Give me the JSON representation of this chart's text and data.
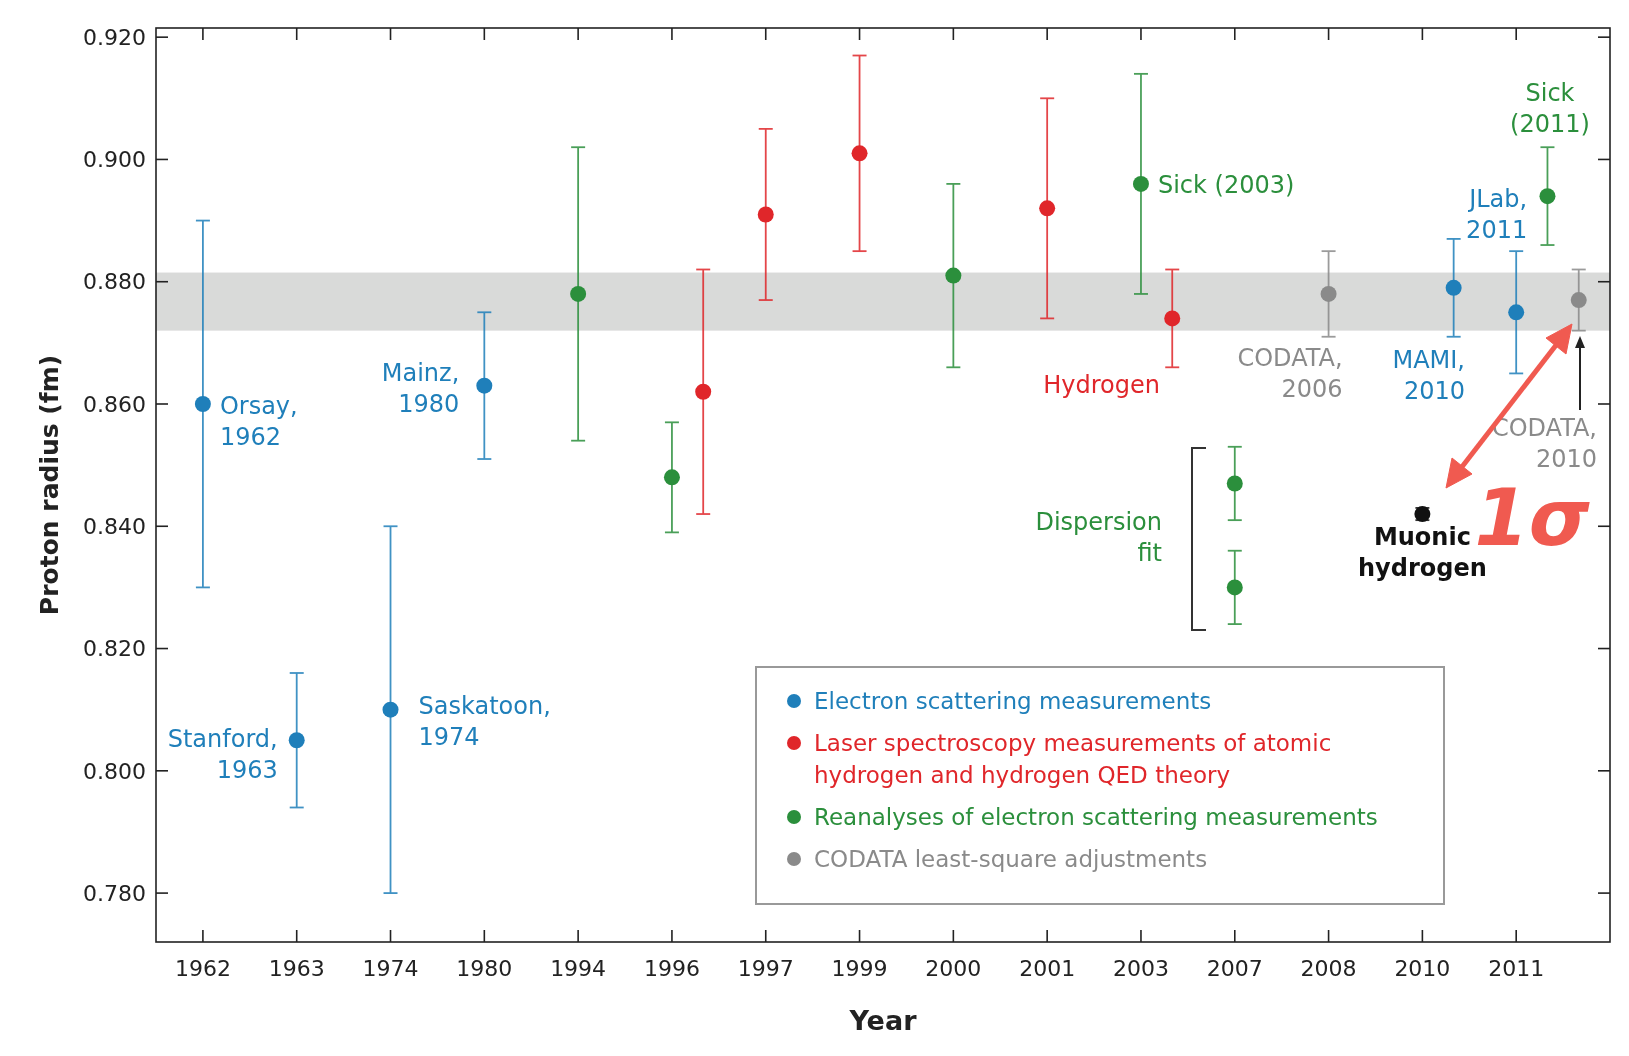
{
  "chart_data": {
    "type": "scatter",
    "xlabel": "Year",
    "ylabel": "Proton radius (fm)",
    "categories": [
      "1962",
      null,
      null,
      "1963",
      null,
      null,
      "1974",
      null,
      null,
      "1980",
      null,
      null,
      "1994",
      null,
      null,
      "1996",
      null,
      null,
      "1997",
      null,
      null,
      "1999",
      null,
      null,
      "2000",
      null,
      null,
      "2001",
      null,
      null,
      "2003",
      null,
      null,
      "2007",
      null,
      null,
      "2008",
      null,
      null,
      "2010",
      null,
      null,
      "2011",
      null,
      null
    ],
    "ylim": [
      0.772,
      0.9215
    ],
    "yticks": [
      {
        "value": 0.78,
        "label": "0.780"
      },
      {
        "value": 0.8,
        "label": "0.800"
      },
      {
        "value": 0.82,
        "label": "0.820"
      },
      {
        "value": 0.84,
        "label": "0.840"
      },
      {
        "value": 0.86,
        "label": "0.860"
      },
      {
        "value": 0.88,
        "label": "0.880"
      },
      {
        "value": 0.9,
        "label": "0.900"
      },
      {
        "value": 0.92,
        "label": "0.920"
      }
    ],
    "marker": "circle",
    "legend": "bottom right",
    "bands": [
      {
        "axis": "y",
        "from": 0.872,
        "to": 0.8815,
        "color": "#d9dad9"
      }
    ],
    "series": [
      {
        "name": "Electron scattering measurements",
        "color": "#1f7fba",
        "values": [
          0.86,
          null,
          null,
          0.805,
          null,
          null,
          0.81,
          null,
          null,
          0.863,
          null,
          null,
          null,
          null,
          null,
          null,
          null,
          null,
          null,
          null,
          null,
          null,
          null,
          null,
          null,
          null,
          null,
          null,
          null,
          null,
          null,
          null,
          null,
          null,
          null,
          null,
          null,
          null,
          null,
          null,
          0.879,
          null,
          0.875,
          null,
          null
        ],
        "errors": [
          0.03,
          null,
          null,
          0.011,
          null,
          null,
          0.03,
          null,
          null,
          0.012,
          null,
          null,
          null,
          null,
          null,
          null,
          null,
          null,
          null,
          null,
          null,
          null,
          null,
          null,
          null,
          null,
          null,
          null,
          null,
          null,
          null,
          null,
          null,
          null,
          null,
          null,
          null,
          null,
          null,
          null,
          0.008,
          null,
          0.01,
          null,
          null
        ]
      },
      {
        "name": "Laser spectroscopy measurements of atomic hydrogen and hydrogen QED theory",
        "color": "#e0262a",
        "values": [
          null,
          null,
          null,
          null,
          null,
          null,
          null,
          null,
          null,
          null,
          null,
          null,
          null,
          null,
          null,
          null,
          0.862,
          null,
          0.891,
          null,
          null,
          0.901,
          null,
          null,
          null,
          null,
          null,
          0.892,
          null,
          null,
          null,
          0.874,
          null,
          null,
          null,
          null,
          null,
          null,
          null,
          null,
          null,
          null,
          null,
          null,
          null
        ],
        "errors": [
          null,
          null,
          null,
          null,
          null,
          null,
          null,
          null,
          null,
          null,
          null,
          null,
          null,
          null,
          null,
          null,
          0.02,
          null,
          0.014,
          null,
          null,
          0.016,
          null,
          null,
          null,
          null,
          null,
          0.018,
          null,
          null,
          null,
          0.008,
          null,
          null,
          null,
          null,
          null,
          null,
          null,
          null,
          null,
          null,
          null,
          null,
          null
        ]
      },
      {
        "name": "Reanalyses of electron scattering measurements",
        "color": "#2b8f3c",
        "values": [
          null,
          null,
          null,
          null,
          null,
          null,
          null,
          null,
          null,
          null,
          null,
          null,
          0.878,
          null,
          null,
          0.848,
          null,
          null,
          null,
          null,
          null,
          null,
          null,
          null,
          0.881,
          null,
          null,
          null,
          null,
          null,
          0.896,
          null,
          null,
          0.847,
          null,
          null,
          null,
          null,
          null,
          null,
          null,
          null,
          null,
          0.894,
          null
        ],
        "errors": [
          null,
          null,
          null,
          null,
          null,
          null,
          null,
          null,
          null,
          null,
          null,
          null,
          0.024,
          null,
          null,
          0.009,
          null,
          null,
          null,
          null,
          null,
          null,
          null,
          null,
          0.015,
          null,
          null,
          null,
          null,
          null,
          0.018,
          null,
          null,
          0.006,
          null,
          null,
          null,
          null,
          null,
          null,
          null,
          null,
          null,
          0.008,
          null
        ]
      },
      {
        "color": "#2b8f3c",
        "values": [
          null,
          null,
          null,
          null,
          null,
          null,
          null,
          null,
          null,
          null,
          null,
          null,
          null,
          null,
          null,
          null,
          null,
          null,
          null,
          null,
          null,
          null,
          null,
          null,
          null,
          null,
          null,
          null,
          null,
          null,
          null,
          null,
          null,
          0.83,
          null,
          null,
          null,
          null,
          null,
          null,
          null,
          null,
          null,
          null,
          null
        ],
        "errors": [
          null,
          null,
          null,
          null,
          null,
          null,
          null,
          null,
          null,
          null,
          null,
          null,
          null,
          null,
          null,
          null,
          null,
          null,
          null,
          null,
          null,
          null,
          null,
          null,
          null,
          null,
          null,
          null,
          null,
          null,
          null,
          null,
          null,
          0.006,
          null,
          null,
          null,
          null,
          null,
          null,
          null,
          null,
          null,
          null,
          null
        ]
      },
      {
        "name": "CODATA least-square adjustments",
        "color": "#8a8a8a",
        "values": [
          null,
          null,
          null,
          null,
          null,
          null,
          null,
          null,
          null,
          null,
          null,
          null,
          null,
          null,
          null,
          null,
          null,
          null,
          null,
          null,
          null,
          null,
          null,
          null,
          null,
          null,
          null,
          null,
          null,
          null,
          null,
          null,
          null,
          null,
          null,
          null,
          0.878,
          null,
          null,
          null,
          null,
          null,
          null,
          null,
          0.877
        ],
        "errors": [
          null,
          null,
          null,
          null,
          null,
          null,
          null,
          null,
          null,
          null,
          null,
          null,
          null,
          null,
          null,
          null,
          null,
          null,
          null,
          null,
          null,
          null,
          null,
          null,
          null,
          null,
          null,
          null,
          null,
          null,
          null,
          null,
          null,
          null,
          null,
          null,
          0.007,
          null,
          null,
          null,
          null,
          null,
          null,
          null,
          0.005
        ]
      },
      {
        "color": "#111111",
        "values": [
          null,
          null,
          null,
          null,
          null,
          null,
          null,
          null,
          null,
          null,
          null,
          null,
          null,
          null,
          null,
          null,
          null,
          null,
          null,
          null,
          null,
          null,
          null,
          null,
          null,
          null,
          null,
          null,
          null,
          null,
          null,
          null,
          null,
          null,
          null,
          null,
          null,
          null,
          null,
          0.842,
          null,
          null,
          null,
          null,
          null
        ],
        "errors": [
          null,
          null,
          null,
          null,
          null,
          null,
          null,
          null,
          null,
          null,
          null,
          null,
          null,
          null,
          null,
          null,
          null,
          null,
          null,
          null,
          null,
          null,
          null,
          null,
          null,
          null,
          null,
          null,
          null,
          null,
          null,
          null,
          null,
          null,
          null,
          null,
          null,
          null,
          null,
          0.001,
          null,
          null,
          null,
          null,
          null
        ]
      }
    ],
    "annotations": [
      {
        "text": "Orsay,\n1962",
        "x": "1962",
        "y": 0.86
      },
      {
        "text": "Stanford,\n1963",
        "x": "1963",
        "y": 0.805
      },
      {
        "text": "Saskatoon,\n1974",
        "x": "1974",
        "y": 0.81
      },
      {
        "text": "Mainz,\n1980",
        "x": "1980",
        "y": 0.863
      },
      "Hydrogen",
      {
        "text": "Sick (2003)",
        "x": "2003",
        "y": 0.896
      },
      "Dispersion\nfit",
      {
        "text": "CODATA,\n2006",
        "x": "2008",
        "y": 0.878
      },
      "MAMI,\n2010",
      {
        "text": "JLab,\n2011",
        "x": "2011",
        "y": 0.875
      },
      "Sick\n(2011)",
      "CODATA,\n2010",
      {
        "text": "Muonic\nhydrogen",
        "x": "2010",
        "y": 0.842
      },
      "1σ"
    ]
  }
}
